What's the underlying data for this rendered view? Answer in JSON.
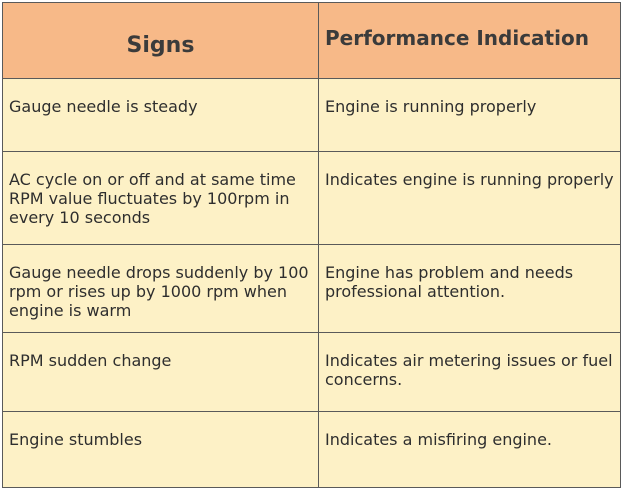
{
  "table": {
    "headers": [
      "Signs",
      "Performance Indication"
    ],
    "rows": [
      {
        "sign": "Gauge needle is steady",
        "indication": "Engine is running properly"
      },
      {
        "sign": "AC cycle on or off and at same time RPM value fluctuates by 100rpm in every 10 seconds",
        "indication": "Indicates engine is running properly"
      },
      {
        "sign": "Gauge needle drops suddenly by 100 rpm or rises up by 1000 rpm when engine is warm",
        "indication": "Engine has problem and needs professional attention."
      },
      {
        "sign": "RPM sudden change",
        "indication": "Indicates air metering issues or fuel concerns."
      },
      {
        "sign": "Engine stumbles",
        "indication": "Indicates a misfiring engine."
      }
    ]
  },
  "colors": {
    "header_bg": "#f7b988",
    "cell_bg": "#fdf1c6",
    "border": "#5a5a5a"
  }
}
